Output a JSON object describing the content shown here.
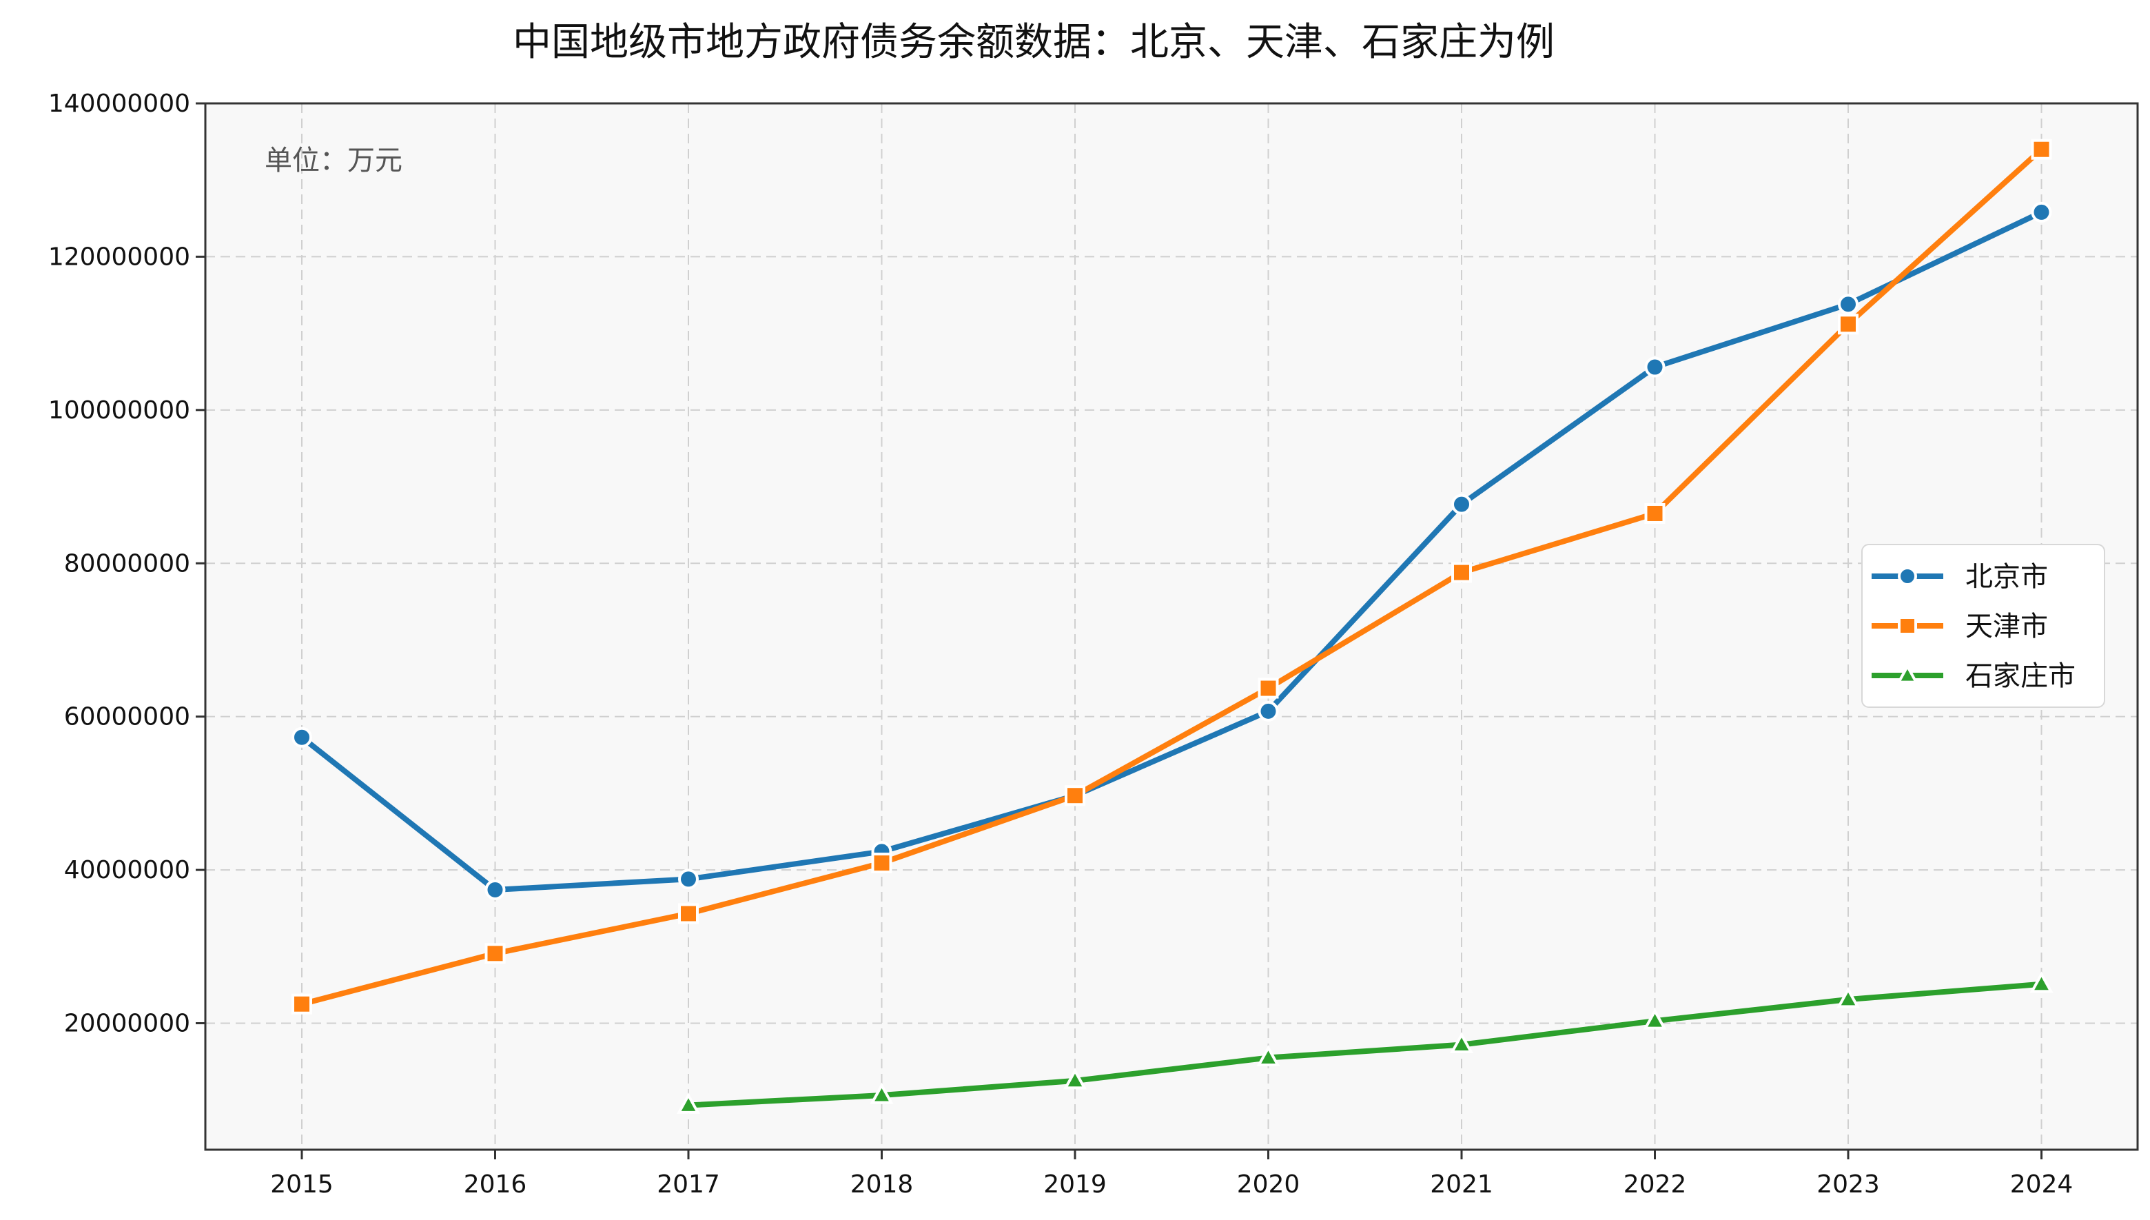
{
  "chart_data": {
    "type": "line",
    "title": "中国地级市地方政府债务余额数据：北京、天津、石家庄为例",
    "annotation": "单位：万元",
    "xlabel": "",
    "ylabel": "",
    "x": [
      "2015",
      "2016",
      "2017",
      "2018",
      "2019",
      "2020",
      "2021",
      "2022",
      "2023",
      "2024"
    ],
    "yticks": [
      20000000,
      40000000,
      60000000,
      80000000,
      100000000,
      120000000,
      140000000
    ],
    "ytick_labels": [
      "20000000",
      "40000000",
      "60000000",
      "80000000",
      "100000000",
      "120000000",
      "140000000"
    ],
    "ylim": [
      3500000,
      140000000
    ],
    "grid": true,
    "legend_position": "right",
    "series": [
      {
        "name": "北京市",
        "color": "#1f77b4",
        "marker": "circle",
        "values": [
          57300000,
          37400000,
          38800000,
          42400000,
          49700000,
          60700000,
          87700000,
          105600000,
          113800000,
          125800000
        ]
      },
      {
        "name": "天津市",
        "color": "#ff7f0e",
        "marker": "square",
        "values": [
          22500000,
          29100000,
          34300000,
          40900000,
          49700000,
          63700000,
          78800000,
          86500000,
          111200000,
          134000000
        ]
      },
      {
        "name": "石家庄市",
        "color": "#2ca02c",
        "marker": "triangle",
        "values": [
          null,
          null,
          9300000,
          10600000,
          12500000,
          15500000,
          17200000,
          20300000,
          23100000,
          25100000
        ]
      }
    ]
  }
}
